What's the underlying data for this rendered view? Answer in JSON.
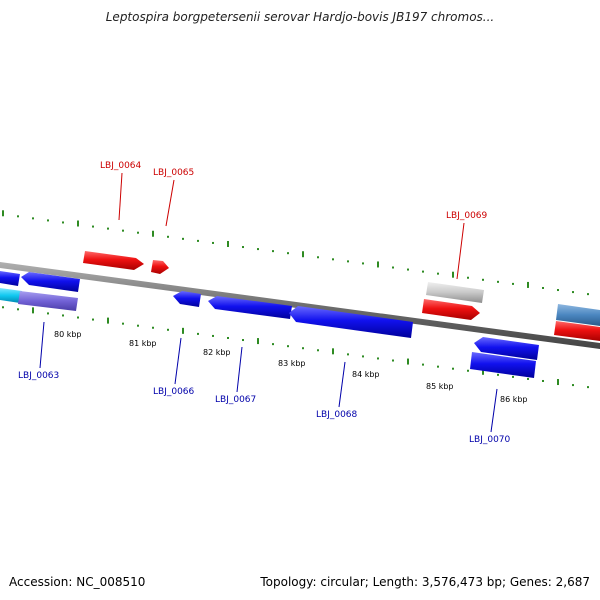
{
  "title": "Leptospira borgpetersenii serovar Hardjo-bovis JB197 chromos...",
  "footer": {
    "accession": "Accession: NC_008510",
    "summary": "Topology: circular; Length: 3,576,473 bp; Genes: 2,687"
  },
  "colors": {
    "backbone": "#7a7a7a",
    "tick": "#2e8b22",
    "forward_gene": "#ee1111",
    "reverse_gene": "#1111ee",
    "forward_label": "#cc0000",
    "reverse_label": "#0000aa"
  },
  "scale_labels": [
    "80 kbp",
    "81 kbp",
    "82 kbp",
    "83 kbp",
    "84 kbp",
    "85 kbp",
    "86 kbp"
  ],
  "gene_labels": {
    "forward": [
      "LBJ_0064",
      "LBJ_0065",
      "LBJ_0069"
    ],
    "reverse": [
      "LBJ_0063",
      "LBJ_0066",
      "LBJ_0067",
      "LBJ_0068",
      "LBJ_0070"
    ]
  }
}
